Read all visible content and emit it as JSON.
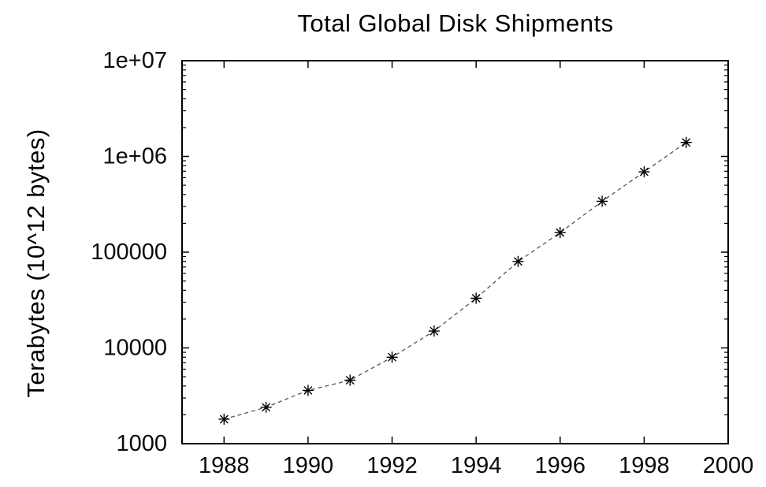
{
  "chart_data": {
    "type": "line",
    "title": "Total Global Disk Shipments",
    "ylabel": "Terabytes (10^12 bytes)",
    "xlabel": "",
    "yscale": "log",
    "xlim": [
      1987,
      2000
    ],
    "ylim": [
      1000,
      10000000
    ],
    "x": [
      1988,
      1989,
      1990,
      1991,
      1992,
      1993,
      1994,
      1995,
      1996,
      1997,
      1998,
      1999
    ],
    "values": [
      1800,
      2400,
      3600,
      4600,
      8000,
      15000,
      33000,
      80000,
      160000,
      340000,
      690000,
      1400000
    ],
    "xticks": [
      1988,
      1990,
      1992,
      1994,
      1996,
      1998,
      2000
    ],
    "yticks": [
      1000,
      10000,
      100000,
      1000000,
      10000000
    ],
    "ytick_labels": [
      "1000",
      "10000",
      "100000",
      "1e+06",
      "1e+07"
    ],
    "minor_ytick_multipliers": [
      2,
      3,
      4,
      5,
      6,
      7,
      8,
      9
    ],
    "grid": false,
    "legend": "none",
    "marker": "asterisk",
    "line_style": "dashed",
    "colors": {
      "background": "#ffffff",
      "frame": "#000000",
      "text": "#0a0a0a",
      "line": "#555555",
      "marker": "#000000"
    }
  }
}
